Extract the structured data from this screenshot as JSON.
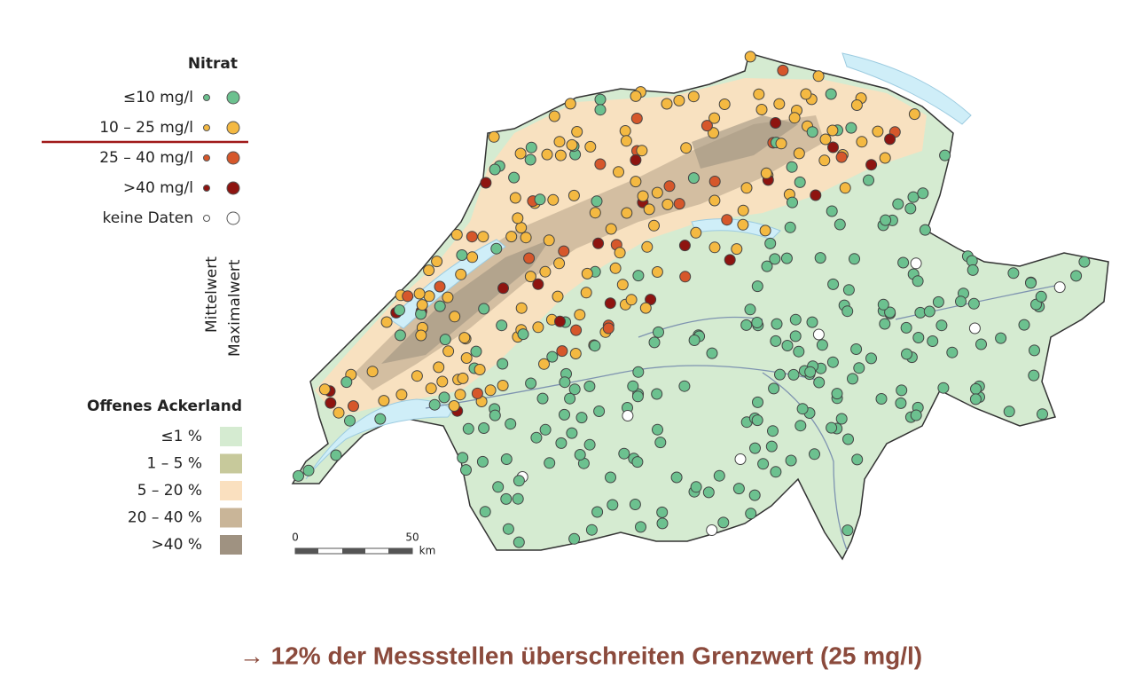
{
  "legend": {
    "title": "Nitrat",
    "items": [
      {
        "label": "≤10 mg/l",
        "color": "#6cc18f"
      },
      {
        "label": "10 – 25 mg/l",
        "color": "#f4b942"
      },
      {
        "label": "25 – 40 mg/l",
        "color": "#d6572b"
      },
      {
        "label": ">40 mg/l",
        "color": "#8e1410"
      },
      {
        "label": "keine Daten",
        "color": "#ffffff"
      }
    ],
    "column_labels": [
      "Mittelwert",
      "Maximalwert"
    ]
  },
  "land_legend": {
    "title": "Offenes Ackerland",
    "items": [
      {
        "label": "≤1 %",
        "color": "#d5ebd1"
      },
      {
        "label": "1 – 5 %",
        "color": "#c7c99b"
      },
      {
        "label": "5 – 20 %",
        "color": "#fae0bf"
      },
      {
        "label": "20 – 40 %",
        "color": "#c9b598"
      },
      {
        "label": ">40 %",
        "color": "#9f9281"
      }
    ]
  },
  "scale_bar": {
    "labels": [
      "0",
      "50",
      "km"
    ]
  },
  "footer": "→ 12% der Messstellen überschreiten Grenzwert (25 mg/l)"
}
